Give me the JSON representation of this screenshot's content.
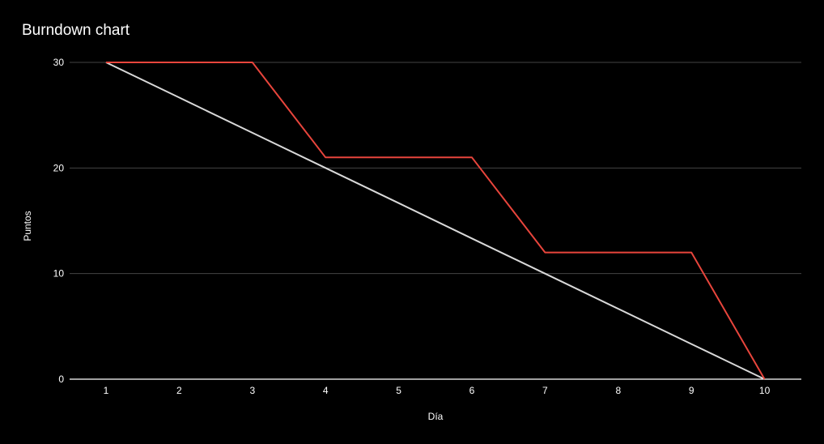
{
  "chart_data": {
    "type": "line",
    "title": "Burndown chart",
    "xlabel": "Día",
    "ylabel": "Puntos",
    "x": [
      1,
      2,
      3,
      4,
      5,
      6,
      7,
      8,
      9,
      10
    ],
    "ylim": [
      0,
      30
    ],
    "yticks": [
      0,
      10,
      20,
      30
    ],
    "grid": true,
    "series": [
      {
        "values": [
          30,
          26.67,
          23.33,
          20,
          16.67,
          13.33,
          10,
          6.67,
          3.33,
          0
        ],
        "color": "#d9d9d9"
      },
      {
        "values": [
          30,
          30,
          30,
          21,
          21,
          21,
          12,
          12,
          12,
          0
        ],
        "color": "#e8453c"
      }
    ]
  },
  "colors": {
    "background": "#000000",
    "gridline": "#444444",
    "baseline": "#ffffff",
    "text": "#ffffff"
  }
}
